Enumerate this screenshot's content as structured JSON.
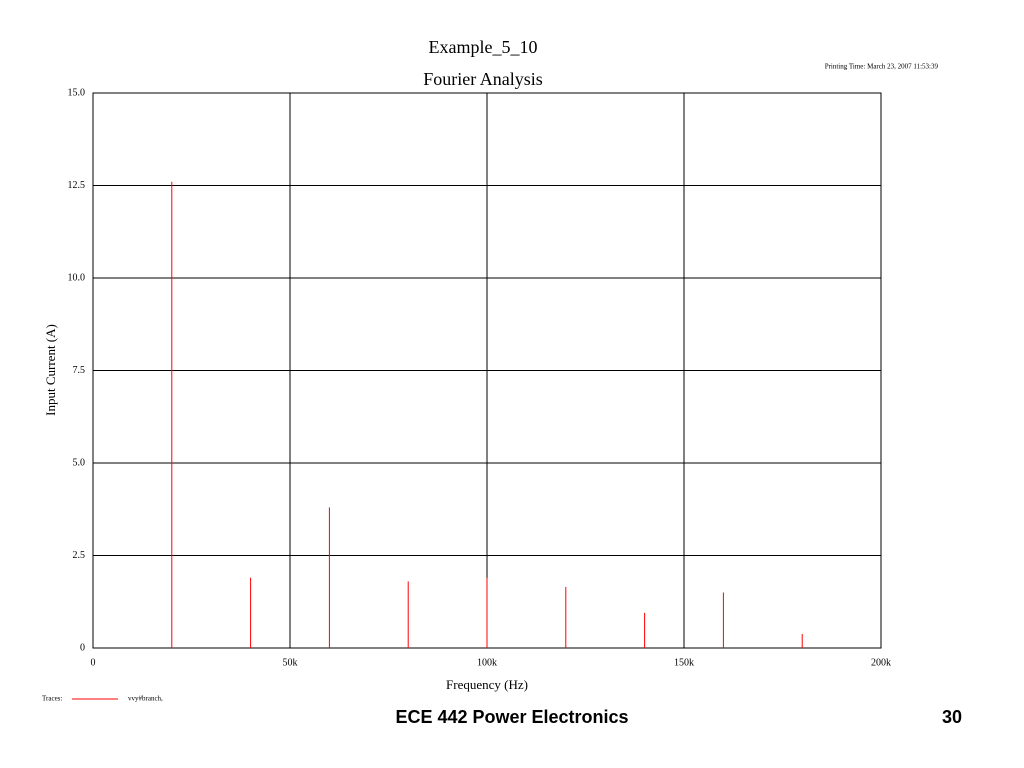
{
  "chart_data": {
    "type": "stem",
    "title": "Example_5_10",
    "subtitle": "Fourier Analysis",
    "annotation": "Printing Time: March 23, 2007 11:53:39",
    "xlabel": "Frequency (Hz)",
    "ylabel": "Input Current (A)",
    "legend_title": "Traces:",
    "x": [
      20000,
      40000,
      60000,
      80000,
      100000,
      120000,
      140000,
      160000,
      180000
    ],
    "series": [
      {
        "name": "vvy#branch,",
        "color": "#ff0000",
        "values": [
          12.6,
          1.9,
          3.8,
          1.8,
          1.9,
          1.65,
          0.95,
          1.5,
          0.38
        ]
      }
    ],
    "xlim": [
      0,
      200000
    ],
    "xticks": [
      0,
      {
        "value": 50000,
        "label": "50k"
      },
      {
        "value": 100000,
        "label": "100k"
      },
      {
        "value": 150000,
        "label": "150k"
      },
      {
        "value": 200000,
        "label": "200k"
      }
    ],
    "ylim": [
      0,
      15
    ],
    "yticks": [
      0,
      2.5,
      {
        "value": 5,
        "label": "5.0"
      },
      7.5,
      {
        "value": 10,
        "label": "10.0"
      },
      12.5,
      {
        "value": 15,
        "label": "15.0"
      }
    ],
    "grid": true
  },
  "footer": {
    "course": "ECE 442 Power Electronics",
    "page": "30"
  }
}
